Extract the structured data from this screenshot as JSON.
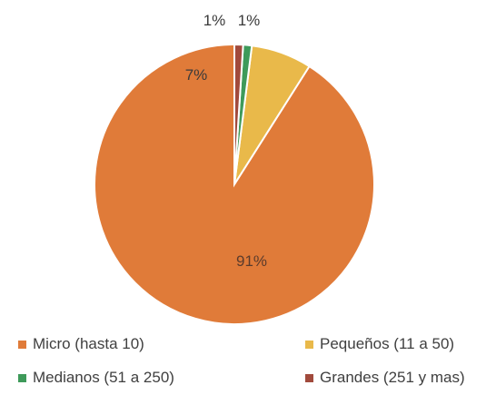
{
  "chart_data": {
    "type": "pie",
    "title": "",
    "slices": [
      {
        "label": "Micro (hasta 10)",
        "value": 91,
        "display": "91%",
        "color": "#E07B39"
      },
      {
        "label": "Pequeños (11 a 50)",
        "value": 7,
        "display": "7%",
        "color": "#E9B94A"
      },
      {
        "label": "Medianos (51 a 250)",
        "value": 1,
        "display": "1%",
        "color": "#3E9A5A"
      },
      {
        "label": "Grandes (251 y mas)",
        "value": 1,
        "display": "1%",
        "color": "#A14A3C"
      }
    ],
    "legend_position": "bottom",
    "start_angle_degrees": 0,
    "direction": "counterclockwise"
  }
}
